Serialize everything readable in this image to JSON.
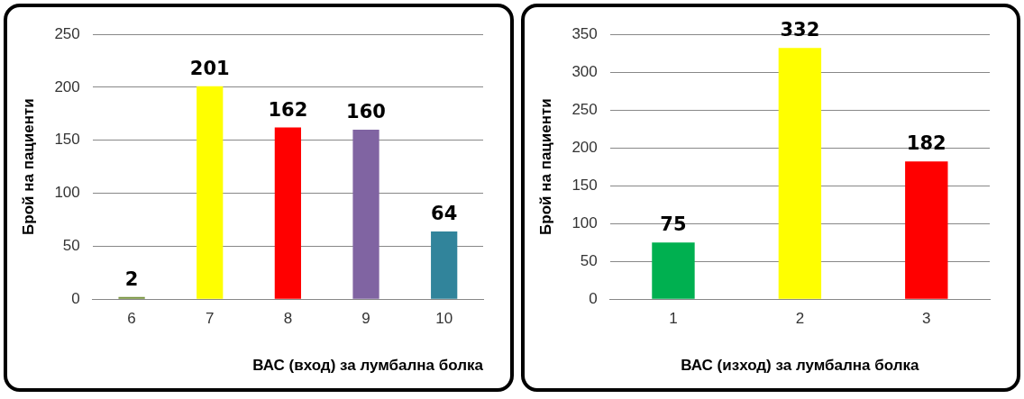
{
  "chart_data": [
    {
      "type": "bar",
      "categories": [
        "6",
        "7",
        "8",
        "9",
        "10"
      ],
      "values": [
        2,
        201,
        162,
        160,
        64
      ],
      "colors": [
        "#76923c",
        "#ffff00",
        "#ff0000",
        "#8064a2",
        "#31849b"
      ],
      "ylim": [
        0,
        250
      ],
      "yticks": [
        0,
        50,
        100,
        150,
        200,
        250
      ],
      "grid": "y",
      "ylabel": "Брой на пациенти",
      "xlabel": "ВАС (вход) за лумбална болка",
      "data_labels": true,
      "legend": false
    },
    {
      "type": "bar",
      "categories": [
        "1",
        "2",
        "3"
      ],
      "values": [
        75,
        332,
        182
      ],
      "colors": [
        "#00b050",
        "#ffff00",
        "#ff0000"
      ],
      "ylim": [
        0,
        350
      ],
      "yticks": [
        0,
        50,
        100,
        150,
        200,
        250,
        300,
        350
      ],
      "grid": "y",
      "ylabel": "Брой на пациенти",
      "xlabel": "ВАС (изход) за лумбална болка",
      "data_labels": true,
      "legend": false
    }
  ]
}
